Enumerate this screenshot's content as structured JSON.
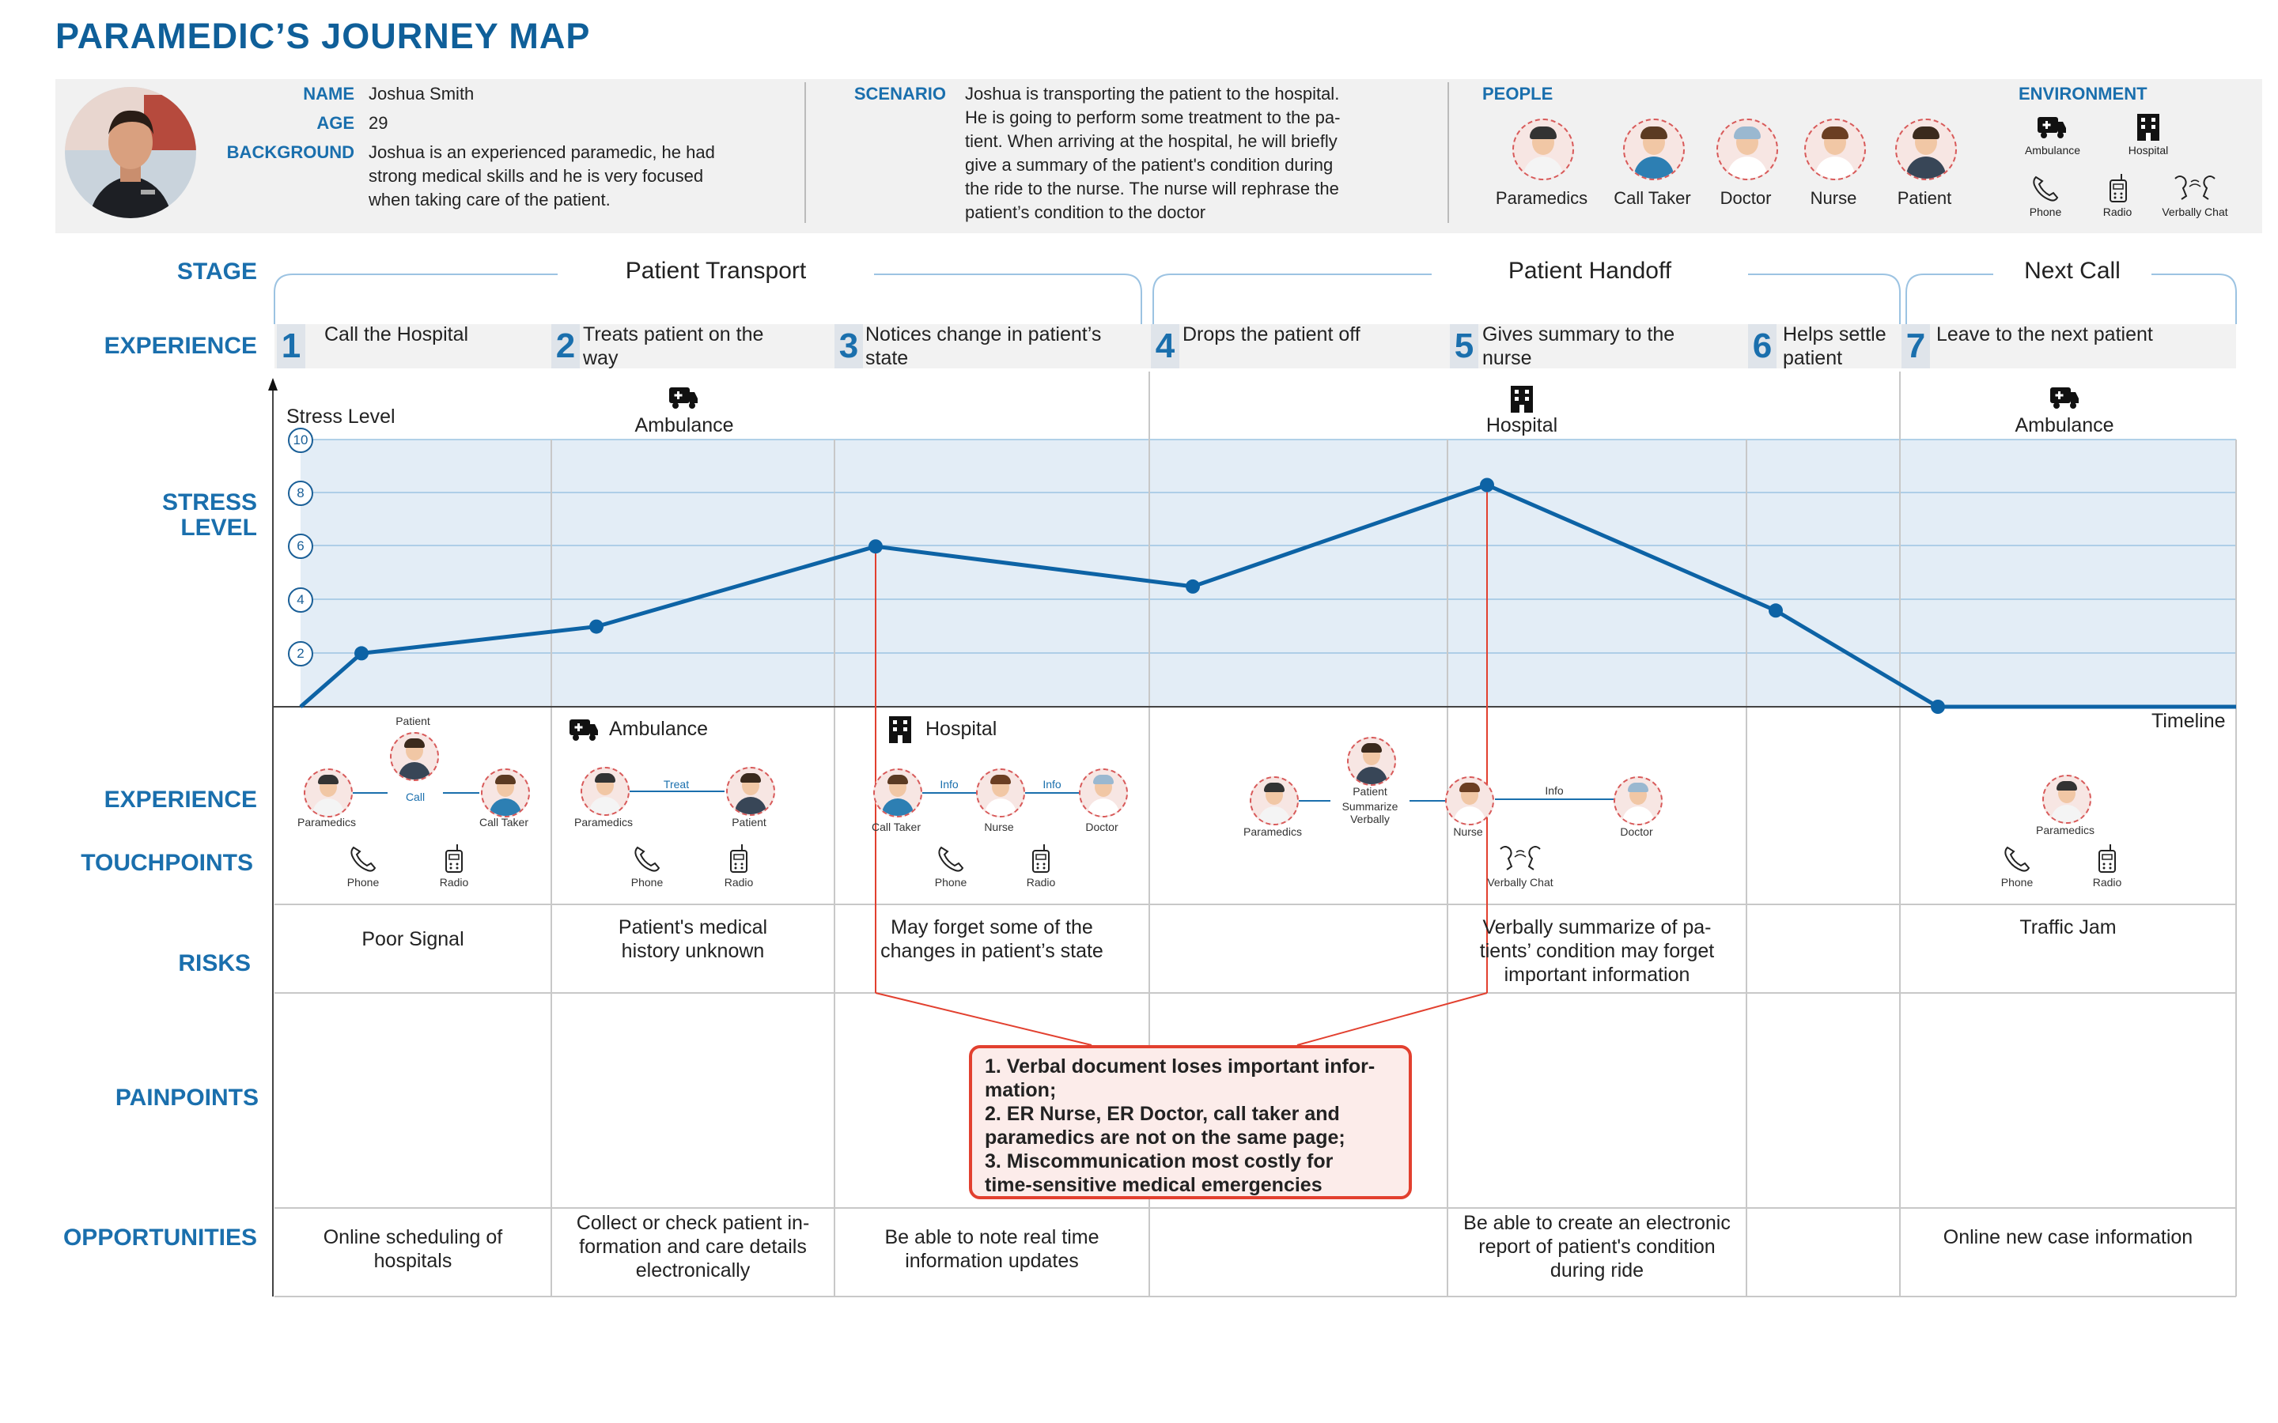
{
  "title": "PARAMEDIC’S  JOURNEY MAP",
  "persona": {
    "name_label": "NAME",
    "name": "Joshua Smith",
    "age_label": "AGE",
    "age": "29",
    "background_label": "BACKGROUND",
    "background_lines": [
      "Joshua is an experienced paramedic, he had",
      "strong medical skills and he is very focused",
      "when taking care of the patient."
    ]
  },
  "scenario": {
    "label": "SCENARIO",
    "lines": [
      "Joshua is transporting the patient to the hospital.",
      "He is going to perform some treatment to the pa-",
      "tient. When arriving at the hospital, he will briefly",
      "give a summary of the patient's condition during",
      "the ride to the nurse. The nurse will rephrase the",
      "patient’s condition to the doctor"
    ]
  },
  "people": {
    "label": "PEOPLE",
    "items": [
      "Paramedics",
      "Call Taker",
      "Doctor",
      "Nurse",
      "Patient"
    ]
  },
  "environment": {
    "label": "ENVIRONMENT",
    "items": [
      "Ambulance",
      "Hospital",
      "Phone",
      "Radio",
      "Verbally Chat"
    ]
  },
  "row_labels": {
    "stage": "STAGE",
    "experience": "EXPERIENCE",
    "stress_1": "STRESS",
    "stress_2": "LEVEL",
    "experience2": "EXPERIENCE",
    "touchpoints": "TOUCHPOINTS",
    "risks": "RISKS",
    "painpoints": "PAINPOINTS",
    "opportunities": "OPPORTUNITIES"
  },
  "stages": [
    "Patient Transport",
    "Patient Handoff",
    "Next Call"
  ],
  "steps": [
    {
      "num": "1",
      "lines": [
        "Call the Hospital"
      ]
    },
    {
      "num": "2",
      "lines": [
        "Treats patient  on the",
        "way"
      ]
    },
    {
      "num": "3",
      "lines": [
        "Notices change in patient’s",
        "state"
      ]
    },
    {
      "num": "4",
      "lines": [
        "Drops the patient off"
      ]
    },
    {
      "num": "5",
      "lines": [
        "Gives summary to the",
        "nurse"
      ]
    },
    {
      "num": "6",
      "lines": [
        "Helps settle",
        "patient"
      ]
    },
    {
      "num": "7",
      "lines": [
        "Leave to the next patient"
      ]
    }
  ],
  "chart_labels": {
    "y_title": "Stress Level",
    "x_title": "Timeline",
    "locations": [
      "Ambulance",
      "Hospital",
      "Ambulance"
    ]
  },
  "chart_data": {
    "type": "line",
    "x": [
      "start",
      "1",
      "2",
      "3",
      "4",
      "5",
      "6",
      "7",
      "end"
    ],
    "series": [
      {
        "values": [
          0,
          2,
          3,
          6,
          4.5,
          8.3,
          3.6,
          0,
          0
        ]
      }
    ],
    "ylim": [
      0,
      10
    ],
    "yticks": [
      "2",
      "4",
      "6",
      "8",
      "10"
    ],
    "grid": true,
    "color": "#0d63a5"
  },
  "touchpoints": {
    "col1": {
      "people": [
        "Patient",
        "Paramedics",
        "Call Taker"
      ],
      "link": "Call",
      "channels": [
        "Phone",
        "Radio"
      ]
    },
    "col2": {
      "env": "Ambulance",
      "people": [
        "Paramedics",
        "Patient"
      ],
      "link": "Treat",
      "channels": [
        "Phone",
        "Radio"
      ]
    },
    "col3": {
      "env": "Hospital",
      "people": [
        "Call Taker",
        "Nurse",
        "Doctor"
      ],
      "links": [
        "Info",
        "Info"
      ],
      "channels": [
        "Phone",
        "Radio"
      ]
    },
    "col45": {
      "people": [
        "Paramedics",
        "Patient",
        "Nurse",
        "Doctor"
      ],
      "link_a_1": "Summarize",
      "link_a_2": "Verbally",
      "link_b": "Info",
      "channels": [
        "Verbally Chat"
      ]
    },
    "col7": {
      "people": [
        "Paramedics"
      ],
      "channels": [
        "Phone",
        "Radio"
      ]
    }
  },
  "risks": {
    "c1": [
      "Poor Signal"
    ],
    "c2": [
      "Patient's medical",
      "history unknown"
    ],
    "c3": [
      "May forget some of the",
      "changes in patient’s state"
    ],
    "c5": [
      "Verbally summarize of pa-",
      "tients’ condition may forget",
      "important information"
    ],
    "c7": [
      "Traffic Jam"
    ]
  },
  "painpoints": [
    "1. Verbal document loses important infor-",
    "mation;",
    "2. ER Nurse, ER Doctor, call taker and",
    "paramedics are not on the same page;",
    "3. Miscommunication most costly for",
    "time-sensitive medical emergencies"
  ],
  "opportunities": {
    "c1": [
      "Online scheduling of",
      "hospitals"
    ],
    "c2": [
      "Collect or check patient in-",
      "formation and care details",
      "electronically"
    ],
    "c3": [
      "Be able to note real time",
      "information updates"
    ],
    "c5": [
      "Be able to create an electronic",
      "report of patient's condition",
      "during ride"
    ],
    "c7": [
      "Online new case information"
    ]
  },
  "colors": {
    "accent": "#1a6fad",
    "line": "#0d63a5",
    "band": "#e3edf6",
    "alert": "#e2402f"
  }
}
